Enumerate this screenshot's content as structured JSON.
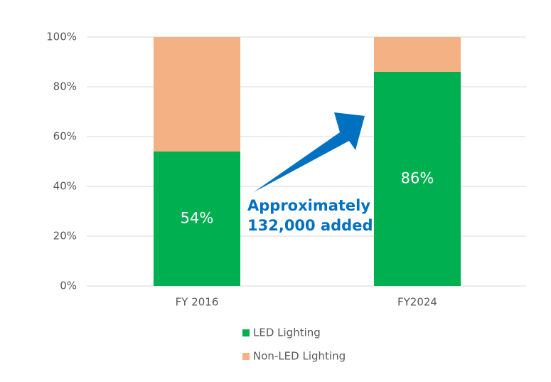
{
  "chart_data": {
    "type": "stacked_bar",
    "categories": [
      "FY 2016",
      "FY2024"
    ],
    "series": [
      {
        "name": "LED Lighting",
        "color": "#00b050",
        "values": [
          54,
          86
        ],
        "value_labels": [
          "54%",
          "86%"
        ]
      },
      {
        "name": "Non-LED Lighting",
        "color": "#f4b183",
        "values": [
          46,
          14
        ]
      }
    ],
    "ylim": [
      0,
      100
    ],
    "yticks": [
      {
        "value": 0,
        "label": "0%"
      },
      {
        "value": 20,
        "label": "20%"
      },
      {
        "value": 40,
        "label": "40%"
      },
      {
        "value": 60,
        "label": "60%"
      },
      {
        "value": 80,
        "label": "80%"
      },
      {
        "value": 100,
        "label": "100%"
      }
    ],
    "grid": true,
    "legend": "bottom",
    "annotation": [
      "Approximately",
      "132,000 added"
    ]
  }
}
